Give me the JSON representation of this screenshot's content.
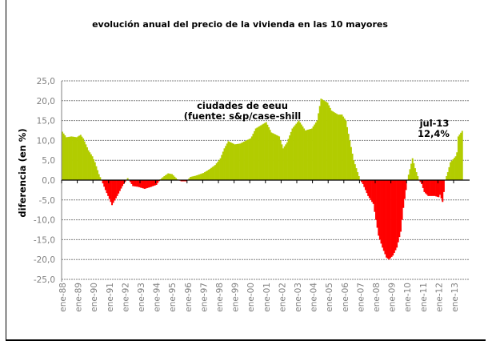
{
  "chart_data": {
    "type": "area",
    "title": "evolución anual del precio de la vivienda en las 10 mayores",
    "xlabel": "",
    "ylabel": "diferencia (en %)",
    "ylim": [
      -25,
      25
    ],
    "y_ticks": [
      "25,0",
      "20,0",
      "15,0",
      "10,0",
      "5,0",
      "0,0",
      "-5,0",
      "-10,0",
      "-15,0",
      "-20,0",
      "-25,0"
    ],
    "x_ticks": [
      "ene-88",
      "ene-89",
      "ene-90",
      "ene-91",
      "ene-92",
      "ene-93",
      "ene-94",
      "ene-95",
      "ene-96",
      "ene-97",
      "ene-98",
      "ene-99",
      "ene-00",
      "ene-01",
      "ene-02",
      "ene-03",
      "ene-04",
      "ene-05",
      "ene-06",
      "ene-07",
      "ene-08",
      "ene-09",
      "ene-10",
      "ene-11",
      "ene-12",
      "ene-13"
    ],
    "grid": true,
    "legend": "none",
    "colors": {
      "positive": "#b2cc00",
      "negative": "#ff0000",
      "highlight": "#1f7fd0"
    },
    "annotations": {
      "source_line1": "ciudades de eeuu",
      "source_line2": "(fuente:  s&p/case-shill",
      "last_date": "jul-13",
      "last_value": "12,4%"
    },
    "series": [
      {
        "date": "1988-01",
        "value": 12.2
      },
      {
        "date": "1988-04",
        "value": 10.8
      },
      {
        "date": "1988-08",
        "value": 11.0
      },
      {
        "date": "1988-12",
        "value": 10.8
      },
      {
        "date": "1989-03",
        "value": 11.4
      },
      {
        "date": "1989-05",
        "value": 10.5
      },
      {
        "date": "1989-09",
        "value": 7.5
      },
      {
        "date": "1989-12",
        "value": 6.0
      },
      {
        "date": "1990-02",
        "value": 4.5
      },
      {
        "date": "1990-05",
        "value": 1.5
      },
      {
        "date": "1990-07",
        "value": 0.0
      },
      {
        "date": "1990-10",
        "value": -2.5
      },
      {
        "date": "1991-02",
        "value": -5.5
      },
      {
        "date": "1991-03",
        "value": -6.3
      },
      {
        "date": "1991-07",
        "value": -4.0
      },
      {
        "date": "1991-11",
        "value": -1.5
      },
      {
        "date": "1992-01",
        "value": -0.5
      },
      {
        "date": "1992-03",
        "value": 0.5
      },
      {
        "date": "1992-05",
        "value": -0.5
      },
      {
        "date": "1992-07",
        "value": -1.5
      },
      {
        "date": "1992-11",
        "value": -1.7
      },
      {
        "date": "1993-04",
        "value": -2.2
      },
      {
        "date": "1993-08",
        "value": -1.8
      },
      {
        "date": "1994-01",
        "value": -1.2
      },
      {
        "date": "1994-04",
        "value": 0.2
      },
      {
        "date": "1994-07",
        "value": 1.0
      },
      {
        "date": "1994-10",
        "value": 1.7
      },
      {
        "date": "1995-01",
        "value": 1.5
      },
      {
        "date": "1995-05",
        "value": 0.2
      },
      {
        "date": "1995-08",
        "value": -0.3
      },
      {
        "date": "1995-12",
        "value": -0.3
      },
      {
        "date": "1996-03",
        "value": 0.8
      },
      {
        "date": "1996-07",
        "value": 1.1
      },
      {
        "date": "1997-01",
        "value": 1.8
      },
      {
        "date": "1997-05",
        "value": 2.6
      },
      {
        "date": "1997-10",
        "value": 3.8
      },
      {
        "date": "1998-02",
        "value": 5.5
      },
      {
        "date": "1998-05",
        "value": 8.0
      },
      {
        "date": "1998-08",
        "value": 9.8
      },
      {
        "date": "1999-01",
        "value": 9.0
      },
      {
        "date": "1999-05",
        "value": 9.2
      },
      {
        "date": "2000-01",
        "value": 10.5
      },
      {
        "date": "2000-02",
        "value": 11.0
      },
      {
        "date": "2000-05",
        "value": 13.0
      },
      {
        "date": "2001-01",
        "value": 14.6
      },
      {
        "date": "2001-05",
        "value": 12.0
      },
      {
        "date": "2001-11",
        "value": 11.0
      },
      {
        "date": "2002-02",
        "value": 8.0
      },
      {
        "date": "2002-05",
        "value": 9.5
      },
      {
        "date": "2002-09",
        "value": 13.0
      },
      {
        "date": "2003-02",
        "value": 15.0
      },
      {
        "date": "2003-07",
        "value": 12.5
      },
      {
        "date": "2003-12",
        "value": 13.0
      },
      {
        "date": "2004-04",
        "value": 15.0
      },
      {
        "date": "2004-07",
        "value": 20.5
      },
      {
        "date": "2004-12",
        "value": 19.5
      },
      {
        "date": "2005-03",
        "value": 17.5
      },
      {
        "date": "2005-08",
        "value": 16.5
      },
      {
        "date": "2005-11",
        "value": 16.5
      },
      {
        "date": "2006-02",
        "value": 15.0
      },
      {
        "date": "2006-05",
        "value": 10.0
      },
      {
        "date": "2006-08",
        "value": 5.0
      },
      {
        "date": "2007-01",
        "value": 0.0
      },
      {
        "date": "2007-03",
        "value": -1.0
      },
      {
        "date": "2007-07",
        "value": -4.0
      },
      {
        "date": "2007-11",
        "value": -6.0
      },
      {
        "date": "2008-01",
        "value": -10.0
      },
      {
        "date": "2008-03",
        "value": -14.0
      },
      {
        "date": "2008-06",
        "value": -17.0
      },
      {
        "date": "2008-09",
        "value": -19.5
      },
      {
        "date": "2008-11",
        "value": -20.0
      },
      {
        "date": "2009-02",
        "value": -19.0
      },
      {
        "date": "2009-05",
        "value": -17.0
      },
      {
        "date": "2009-08",
        "value": -13.0
      },
      {
        "date": "2009-10",
        "value": -7.0
      },
      {
        "date": "2009-12",
        "value": -2.5
      },
      {
        "date": "2010-01",
        "value": 0.0
      },
      {
        "date": "2010-05",
        "value": 5.5
      },
      {
        "date": "2010-07",
        "value": 3.0
      },
      {
        "date": "2010-10",
        "value": 0.0
      },
      {
        "date": "2010-12",
        "value": -1.0
      },
      {
        "date": "2011-02",
        "value": -3.0
      },
      {
        "date": "2011-05",
        "value": -4.0
      },
      {
        "date": "2011-10",
        "value": -4.0
      },
      {
        "date": "2012-01",
        "value": -4.3
      },
      {
        "date": "2012-02",
        "value": -3.7
      },
      {
        "date": "2012-04",
        "value": -5.5
      },
      {
        "date": "2012-05",
        "value": -3.0
      },
      {
        "date": "2012-06",
        "value": 0.0
      },
      {
        "date": "2012-08",
        "value": 2.0
      },
      {
        "date": "2012-10",
        "value": 4.5
      },
      {
        "date": "2013-02",
        "value": 6.0
      },
      {
        "date": "2013-03",
        "value": 7.0
      },
      {
        "date": "2013-04",
        "value": 11.0
      },
      {
        "date": "2013-07",
        "value": 12.4
      }
    ]
  }
}
